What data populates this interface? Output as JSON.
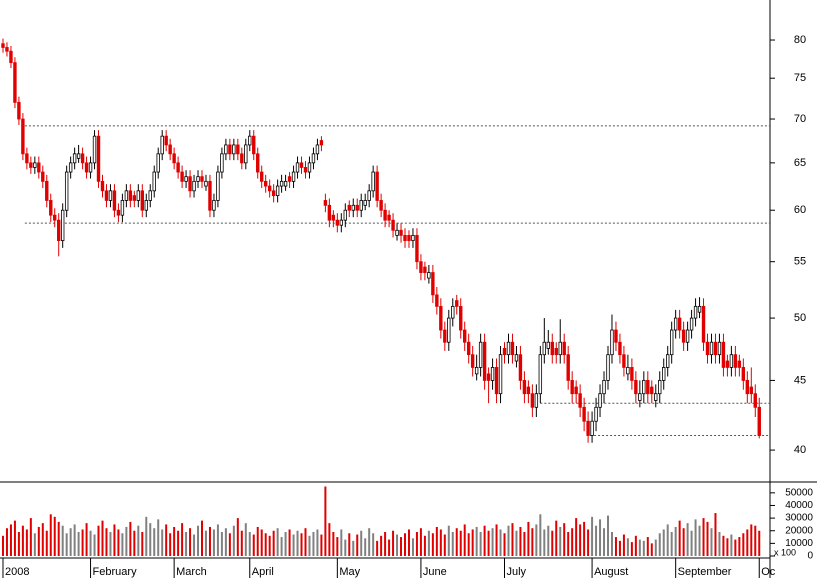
{
  "chart_data": {
    "type": "candlestick",
    "log_scale": true,
    "ylim": [
      37.9,
      85.6
    ],
    "yticks": [
      40,
      45,
      50,
      55,
      60,
      65,
      70,
      75,
      80
    ],
    "xlim": [
      -0.75,
      192.7
    ],
    "xticks": [
      {
        "value": 0,
        "label": "2008"
      },
      {
        "value": 22,
        "label": "February"
      },
      {
        "value": 43,
        "label": "March"
      },
      {
        "value": 62,
        "label": "April"
      },
      {
        "value": 84,
        "label": "May"
      },
      {
        "value": 105,
        "label": "June"
      },
      {
        "value": 126,
        "label": "July"
      },
      {
        "value": 148,
        "label": "August"
      },
      {
        "value": 169,
        "label": "September"
      },
      {
        "value": 190,
        "label": "Oc"
      }
    ],
    "up_color": "#000000",
    "down_color": "#e00000",
    "reference_lines": [
      {
        "value": 69.2,
        "x_start": 5.5
      },
      {
        "value": 58.7,
        "x_start": 5.5
      },
      {
        "value": 43.3,
        "x_start": 135
      },
      {
        "value": 41.0,
        "x_start": 147.5
      }
    ],
    "ohlc": [
      [
        79.5,
        80.2,
        78.3,
        79
      ],
      [
        79,
        79.7,
        77.8,
        78.5
      ],
      [
        78.5,
        79.2,
        76.3,
        77
      ],
      [
        77,
        77.7,
        71.3,
        72
      ],
      [
        72,
        72.7,
        69.3,
        70
      ],
      [
        70,
        70.7,
        65.3,
        66
      ],
      [
        66,
        66.7,
        64.3,
        65
      ],
      [
        65,
        65.7,
        63.8,
        64.5
      ],
      [
        64.5,
        65.7,
        63.8,
        65
      ],
      [
        65,
        65.7,
        63.3,
        64
      ],
      [
        64,
        64.7,
        62.3,
        63
      ],
      [
        63,
        63.7,
        60.3,
        61
      ],
      [
        61,
        61.7,
        58.8,
        59.5
      ],
      [
        59.5,
        60.2,
        58.3,
        59
      ],
      [
        59,
        59.7,
        55.5,
        57
      ],
      [
        57,
        60.7,
        56.3,
        60
      ],
      [
        60,
        64.7,
        59.3,
        64
      ],
      [
        64,
        65.7,
        63.3,
        65
      ],
      [
        65,
        66.7,
        64.3,
        66
      ],
      [
        65.5,
        67,
        65,
        66
      ],
      [
        66,
        66.7,
        64.3,
        65
      ],
      [
        65,
        65.7,
        63.3,
        64
      ],
      [
        64,
        65.7,
        63.3,
        65
      ],
      [
        65,
        68.7,
        64.3,
        68
      ],
      [
        68,
        68.7,
        62.3,
        63
      ],
      [
        63,
        63.7,
        61.3,
        62
      ],
      [
        62,
        62.7,
        60.3,
        61
      ],
      [
        61,
        62.7,
        60.3,
        62
      ],
      [
        62,
        62.7,
        59.3,
        60
      ],
      [
        60,
        60.7,
        58.8,
        59.5
      ],
      [
        59.5,
        61.7,
        58.8,
        61
      ],
      [
        61,
        62.7,
        60.3,
        62
      ],
      [
        62,
        62.7,
        60.3,
        61
      ],
      [
        61.5,
        62,
        60.3,
        61
      ],
      [
        61,
        62.7,
        60.3,
        62
      ],
      [
        62,
        62.7,
        59.3,
        60
      ],
      [
        60,
        61.7,
        59.3,
        61
      ],
      [
        61,
        62.7,
        60.3,
        62
      ],
      [
        62,
        64.7,
        61.3,
        64
      ],
      [
        64,
        66.7,
        63.3,
        66
      ],
      [
        66,
        68.7,
        65.3,
        68
      ],
      [
        68,
        68.7,
        66.3,
        67
      ],
      [
        67,
        67.7,
        65.3,
        66
      ],
      [
        66,
        66.7,
        64.3,
        65
      ],
      [
        65,
        65.7,
        63.3,
        64
      ],
      [
        64,
        64.7,
        62.3,
        63
      ],
      [
        63,
        64.2,
        62.3,
        63.5
      ],
      [
        63.5,
        64.2,
        61.3,
        62
      ],
      [
        62,
        63.7,
        61.3,
        63
      ],
      [
        63,
        64.2,
        62.3,
        63.5
      ],
      [
        63.5,
        64.2,
        62.3,
        63
      ],
      [
        62.5,
        63.7,
        62,
        63
      ],
      [
        63,
        63.7,
        59.3,
        60
      ],
      [
        60,
        61.7,
        59.3,
        61
      ],
      [
        61,
        64.7,
        60.3,
        64
      ],
      [
        64,
        66.7,
        63.3,
        66
      ],
      [
        66,
        67.7,
        65.3,
        67
      ],
      [
        67,
        67.7,
        65.3,
        66
      ],
      [
        66,
        67.7,
        65.3,
        67
      ],
      [
        67,
        67.7,
        65.3,
        66
      ],
      [
        66,
        66.7,
        64.3,
        65
      ],
      [
        65,
        67.7,
        64.3,
        67
      ],
      [
        67,
        68.7,
        66.3,
        68
      ],
      [
        68,
        68.7,
        65.3,
        66
      ],
      [
        66,
        66.7,
        63.3,
        64
      ],
      [
        64,
        64.7,
        62.3,
        63
      ],
      [
        63,
        63.7,
        61.8,
        62.5
      ],
      [
        62.5,
        63.2,
        61.3,
        62
      ],
      [
        62,
        62.7,
        60.8,
        61.5
      ],
      [
        61.5,
        63.2,
        60.8,
        62.5
      ],
      [
        62.5,
        63.7,
        61.8,
        63
      ],
      [
        62.5,
        63.7,
        62,
        63
      ],
      [
        63.5,
        64,
        62.3,
        63
      ],
      [
        63,
        64.7,
        62.3,
        64
      ],
      [
        64,
        65.7,
        63.3,
        65
      ],
      [
        65,
        65.7,
        63.8,
        64.5
      ],
      [
        64.5,
        65.2,
        63.3,
        64
      ],
      [
        64,
        65.7,
        63.3,
        65
      ],
      [
        65,
        66.7,
        64.3,
        66
      ],
      [
        66,
        67.7,
        65.3,
        67
      ],
      [
        67.5,
        68,
        66.3,
        67
      ],
      [
        61,
        61.7,
        59.8,
        60.5
      ],
      [
        60.5,
        61.2,
        58.3,
        59
      ],
      [
        59.5,
        60,
        58.3,
        59
      ],
      [
        59,
        59.7,
        57.8,
        58.5
      ],
      [
        58.5,
        59.7,
        57.8,
        59
      ],
      [
        59,
        60.7,
        58.3,
        60
      ],
      [
        60.5,
        61,
        59.3,
        60
      ],
      [
        60,
        61.2,
        59.3,
        60.5
      ],
      [
        60.5,
        61.2,
        59.3,
        60
      ],
      [
        60,
        61.7,
        59.3,
        61
      ],
      [
        60.5,
        61.7,
        60,
        61
      ],
      [
        61,
        62.7,
        60.3,
        62
      ],
      [
        62,
        64.7,
        61.3,
        64
      ],
      [
        64,
        64.7,
        60.3,
        61
      ],
      [
        61,
        61.7,
        59.3,
        60
      ],
      [
        60,
        60.7,
        58.3,
        59
      ],
      [
        59.5,
        60,
        58.3,
        59
      ],
      [
        59,
        59.7,
        57.3,
        58
      ],
      [
        57.5,
        58.7,
        57,
        58
      ],
      [
        58,
        58.7,
        56.8,
        57.5
      ],
      [
        57.5,
        58.2,
        56.3,
        57
      ],
      [
        57.5,
        58,
        56.3,
        57
      ],
      [
        57,
        58.2,
        56.3,
        57.5
      ],
      [
        57.5,
        58.2,
        54.3,
        55
      ],
      [
        55,
        55.7,
        53.3,
        54
      ],
      [
        54.5,
        55,
        53.3,
        54
      ],
      [
        53.5,
        54.7,
        53,
        54
      ],
      [
        54,
        54.7,
        51.3,
        52
      ],
      [
        52,
        52.7,
        50.3,
        51
      ],
      [
        51,
        51.7,
        48.3,
        49
      ],
      [
        49,
        49.7,
        47.3,
        48
      ],
      [
        48,
        50.7,
        47.3,
        50
      ],
      [
        50,
        51.7,
        49.3,
        51
      ],
      [
        51.5,
        52,
        50.3,
        51
      ],
      [
        51,
        51.7,
        48.3,
        49
      ],
      [
        49,
        49.7,
        47.3,
        48
      ],
      [
        48,
        48.7,
        46.3,
        47
      ],
      [
        47,
        47.7,
        45.3,
        46
      ],
      [
        45.5,
        47,
        45,
        46
      ],
      [
        46,
        48.7,
        45.3,
        48
      ],
      [
        48,
        48.7,
        44.3,
        45
      ],
      [
        45.5,
        46,
        43.3,
        45
      ],
      [
        45,
        46.7,
        44.3,
        46
      ],
      [
        46,
        46.7,
        43.3,
        44
      ],
      [
        44,
        47.7,
        43.3,
        47
      ],
      [
        47.5,
        48,
        46.3,
        47
      ],
      [
        47,
        48.7,
        46.3,
        48
      ],
      [
        48,
        48.7,
        46.3,
        47
      ],
      [
        46.5,
        47.7,
        46,
        47
      ],
      [
        47,
        47.7,
        44.3,
        45
      ],
      [
        45,
        45.7,
        43.3,
        44
      ],
      [
        44.5,
        45,
        43.3,
        44
      ],
      [
        44,
        44.7,
        42.3,
        43
      ],
      [
        43,
        44.7,
        42.3,
        44
      ],
      [
        44,
        47.7,
        43.3,
        47
      ],
      [
        47,
        50,
        46.3,
        48
      ],
      [
        47.5,
        49,
        47,
        48
      ],
      [
        48,
        48.7,
        46.3,
        47
      ],
      [
        47.5,
        48,
        46.3,
        47
      ],
      [
        47,
        49.9,
        46.3,
        48
      ],
      [
        48,
        48.7,
        46.3,
        47
      ],
      [
        47,
        47.7,
        44.3,
        45
      ],
      [
        45,
        45.7,
        43.3,
        44
      ],
      [
        44.5,
        45,
        43.3,
        44
      ],
      [
        44,
        44.7,
        42.3,
        43
      ],
      [
        43,
        43.7,
        41.3,
        42
      ],
      [
        42,
        42.7,
        40.5,
        41
      ],
      [
        41,
        42.7,
        40.5,
        42
      ],
      [
        42,
        43.7,
        41.3,
        43
      ],
      [
        43,
        44.7,
        42.3,
        44
      ],
      [
        44,
        45.7,
        43.3,
        45
      ],
      [
        45,
        47.7,
        44.3,
        47
      ],
      [
        47,
        50.3,
        46.3,
        49
      ],
      [
        49,
        49.7,
        47.3,
        48
      ],
      [
        48,
        48.7,
        46.3,
        47
      ],
      [
        47,
        47.7,
        45.3,
        46
      ],
      [
        45.5,
        47,
        45,
        46
      ],
      [
        46,
        46.7,
        44.3,
        45
      ],
      [
        45,
        45.7,
        43.3,
        44
      ],
      [
        43.5,
        45,
        43,
        44
      ],
      [
        44,
        45.7,
        43.3,
        45
      ],
      [
        45,
        45.7,
        43.3,
        44
      ],
      [
        44.5,
        45,
        43.3,
        44
      ],
      [
        43.5,
        44.7,
        43,
        44
      ],
      [
        44,
        45.7,
        43.3,
        45
      ],
      [
        45,
        46.7,
        44.3,
        46
      ],
      [
        46,
        47.7,
        45.3,
        47
      ],
      [
        47,
        49.7,
        46.3,
        49
      ],
      [
        49,
        50.7,
        48.3,
        50
      ],
      [
        50,
        50.7,
        48.3,
        49
      ],
      [
        49,
        49.7,
        47.3,
        48
      ],
      [
        48,
        49.7,
        47.3,
        49
      ],
      [
        49,
        50.7,
        48.3,
        50
      ],
      [
        50,
        51.7,
        49.3,
        51
      ],
      [
        50.5,
        51.8,
        50,
        51
      ],
      [
        51,
        51.7,
        47.3,
        48
      ],
      [
        48,
        48.7,
        46.3,
        47
      ],
      [
        47,
        48.7,
        46.3,
        48
      ],
      [
        48,
        48.7,
        46.3,
        47
      ],
      [
        47,
        48.7,
        46.3,
        48
      ],
      [
        48,
        48.7,
        45.3,
        46
      ],
      [
        46.5,
        47,
        45.3,
        46
      ],
      [
        46,
        47.7,
        45.3,
        47
      ],
      [
        47,
        47.7,
        45.3,
        46
      ],
      [
        46.5,
        47,
        45.3,
        46
      ],
      [
        46,
        46.7,
        44.3,
        45
      ],
      [
        45,
        45.7,
        43.3,
        44
      ],
      [
        44.5,
        46,
        43.3,
        44
      ],
      [
        44,
        44.7,
        42.3,
        43
      ],
      [
        43,
        43.7,
        40.8,
        41
      ]
    ],
    "volume": {
      "ylim": [
        0,
        57000
      ],
      "yticks": [
        0,
        10000,
        20000,
        30000,
        40000,
        50000
      ],
      "unit_label": "x 100",
      "up_color": "#808080",
      "down_color": "#e00000",
      "values": [
        16000,
        22000,
        25000,
        28000,
        19000,
        24000,
        21000,
        30000,
        18000,
        23000,
        26000,
        20000,
        33000,
        31000,
        27000,
        24000,
        18000,
        22000,
        25000,
        19000,
        21000,
        26000,
        20000,
        17000,
        24000,
        28000,
        22000,
        19000,
        25000,
        21000,
        18000,
        23000,
        27000,
        20000,
        24000,
        19000,
        31000,
        26000,
        22000,
        29000,
        21000,
        25000,
        18000,
        23000,
        20000,
        26000,
        19000,
        22000,
        17000,
        24000,
        28000,
        20000,
        23000,
        21000,
        25000,
        19000,
        22000,
        18000,
        24000,
        30000,
        20000,
        26000,
        19000,
        17000,
        23000,
        21000,
        18000,
        16000,
        20000,
        22000,
        15000,
        19000,
        21000,
        17000,
        20000,
        18000,
        22000,
        16000,
        19000,
        21000,
        17000,
        55000,
        26000,
        19000,
        15000,
        21000,
        13000,
        18000,
        12000,
        17000,
        20000,
        14000,
        22000,
        18000,
        12000,
        16000,
        19000,
        13000,
        20000,
        17000,
        15000,
        18000,
        21000,
        14000,
        19000,
        22000,
        16000,
        20000,
        18000,
        23000,
        21000,
        17000,
        24000,
        19000,
        22000,
        20000,
        25000,
        18000,
        21000,
        23000,
        19000,
        24000,
        20000,
        22000,
        25000,
        21000,
        18000,
        24000,
        26000,
        20000,
        23000,
        19000,
        27000,
        22000,
        25000,
        33000,
        21000,
        24000,
        20000,
        28000,
        23000,
        26000,
        19000,
        22000,
        30000,
        25000,
        27000,
        21000,
        31000,
        24000,
        29000,
        22000,
        32000,
        19000,
        15000,
        12000,
        17000,
        14000,
        11000,
        16000,
        13000,
        12000,
        15000,
        10000,
        13000,
        18000,
        21000,
        25000,
        19000,
        23000,
        28000,
        22000,
        26000,
        20000,
        29000,
        24000,
        30000,
        27000,
        22000,
        34000,
        19000,
        16000,
        14000,
        17000,
        13000,
        15000,
        18000,
        21000,
        25000,
        24000,
        20000
      ]
    }
  }
}
